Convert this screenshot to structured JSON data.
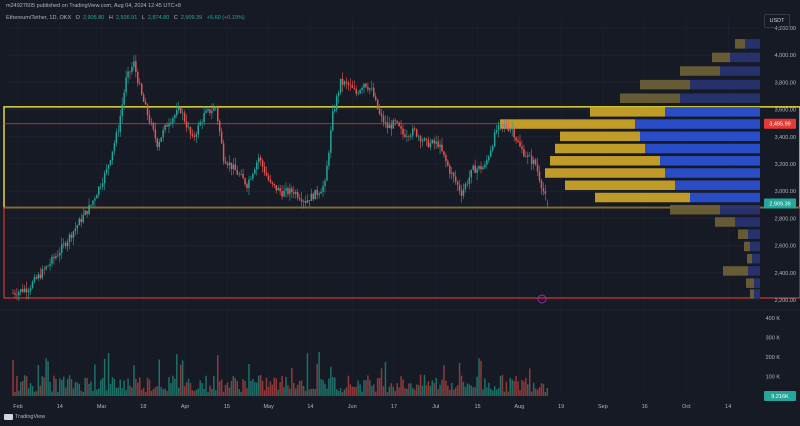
{
  "header": {
    "published": "m24927605 published on TradingView.com, Aug 04, 2024 12:45 UTC+8",
    "symbol": "Ethereum/Tether, 1D, OKX",
    "open_label": "O",
    "open": "2,905.80",
    "high_label": "H",
    "high": "2,936.91",
    "low_label": "L",
    "low": "2,874.80",
    "close_label": "C",
    "close": "2,909.39",
    "change": "+5.60 (+0.19%)"
  },
  "currency_button": "USDT",
  "brand": "TradingView",
  "price_axis": {
    "labels": [
      "4,200.00",
      "4,000.00",
      "3,800.00",
      "3,600.00",
      "3,400.00",
      "3,200.00",
      "3,000.00",
      "2,800.00",
      "2,600.00",
      "2,400.00",
      "2,200.00"
    ],
    "marker_red": "3,495.99",
    "marker_green": "2,909.39"
  },
  "volume_axis": {
    "labels": [
      "400 K",
      "300 K",
      "200 K",
      "100 K"
    ],
    "current": "9.216K"
  },
  "time_axis": [
    "Feb",
    "14",
    "Mar",
    "18",
    "Apr",
    "15",
    "May",
    "14",
    "Jun",
    "17",
    "Jul",
    "15",
    "Aug",
    "19",
    "Sep",
    "16",
    "Oct",
    "14"
  ],
  "colors": {
    "background": "#161a25",
    "up": "#26a69a",
    "down": "#ef5350",
    "zone_yellow": "#f5e63a",
    "zone_red": "#e53935",
    "profile_gold": "#c9a227",
    "profile_blue": "#2a4fd0"
  },
  "icons": [
    "tradingview-logo-icon",
    "currency-badge"
  ],
  "chart_data": {
    "type": "candlestick",
    "symbol": "Ethereum/Tether",
    "interval": "1D",
    "ylim": [
      2200,
      4200
    ],
    "price_path": [
      [
        0,
        2250
      ],
      [
        8,
        2290
      ],
      [
        16,
        2420
      ],
      [
        24,
        2560
      ],
      [
        32,
        2730
      ],
      [
        40,
        2900
      ],
      [
        48,
        3150
      ],
      [
        54,
        3460
      ],
      [
        58,
        3820
      ],
      [
        62,
        3940
      ],
      [
        66,
        3700
      ],
      [
        70,
        3520
      ],
      [
        74,
        3350
      ],
      [
        80,
        3520
      ],
      [
        86,
        3600
      ],
      [
        92,
        3380
      ],
      [
        98,
        3560
      ],
      [
        104,
        3620
      ],
      [
        108,
        3250
      ],
      [
        114,
        3150
      ],
      [
        120,
        3050
      ],
      [
        126,
        3250
      ],
      [
        132,
        3050
      ],
      [
        138,
        2990
      ],
      [
        144,
        3000
      ],
      [
        150,
        2930
      ],
      [
        156,
        2990
      ],
      [
        160,
        3050
      ],
      [
        164,
        3560
      ],
      [
        168,
        3800
      ],
      [
        172,
        3780
      ],
      [
        176,
        3720
      ],
      [
        180,
        3800
      ],
      [
        184,
        3740
      ],
      [
        188,
        3560
      ],
      [
        192,
        3470
      ],
      [
        196,
        3500
      ],
      [
        200,
        3420
      ],
      [
        206,
        3440
      ],
      [
        212,
        3350
      ],
      [
        218,
        3350
      ],
      [
        224,
        3150
      ],
      [
        230,
        2990
      ],
      [
        236,
        3160
      ],
      [
        242,
        3180
      ],
      [
        248,
        3450
      ],
      [
        252,
        3480
      ],
      [
        256,
        3460
      ],
      [
        260,
        3320
      ],
      [
        264,
        3250
      ],
      [
        268,
        3200
      ],
      [
        272,
        3000
      ],
      [
        274,
        2909.39
      ]
    ],
    "zones": [
      {
        "color": "yellow",
        "top": 3620,
        "bottom": 2880
      },
      {
        "color": "red",
        "top": 2880,
        "bottom": 2215
      }
    ],
    "level_line": 3495.99,
    "volume_profile": [
      {
        "price": 4080,
        "gold": 10,
        "blue": 15
      },
      {
        "price": 3980,
        "gold": 18,
        "blue": 30
      },
      {
        "price": 3880,
        "gold": 40,
        "blue": 40
      },
      {
        "price": 3780,
        "gold": 50,
        "blue": 70
      },
      {
        "price": 3680,
        "gold": 60,
        "blue": 80
      },
      {
        "price": 3580,
        "gold": 75,
        "blue": 95
      },
      {
        "price": 3490,
        "gold": 135,
        "blue": 125
      },
      {
        "price": 3400,
        "gold": 80,
        "blue": 120
      },
      {
        "price": 3310,
        "gold": 90,
        "blue": 115
      },
      {
        "price": 3220,
        "gold": 110,
        "blue": 100
      },
      {
        "price": 3130,
        "gold": 120,
        "blue": 95
      },
      {
        "price": 3040,
        "gold": 110,
        "blue": 85
      },
      {
        "price": 2950,
        "gold": 95,
        "blue": 70
      },
      {
        "price": 2860,
        "gold": 50,
        "blue": 40
      },
      {
        "price": 2770,
        "gold": 20,
        "blue": 25
      },
      {
        "price": 2680,
        "gold": 10,
        "blue": 12
      },
      {
        "price": 2590,
        "gold": 6,
        "blue": 10
      },
      {
        "price": 2500,
        "gold": 5,
        "blue": 8
      },
      {
        "price": 2410,
        "gold": 25,
        "blue": 12
      },
      {
        "price": 2320,
        "gold": 8,
        "blue": 6
      },
      {
        "price": 2240,
        "gold": 4,
        "blue": 6
      }
    ]
  }
}
